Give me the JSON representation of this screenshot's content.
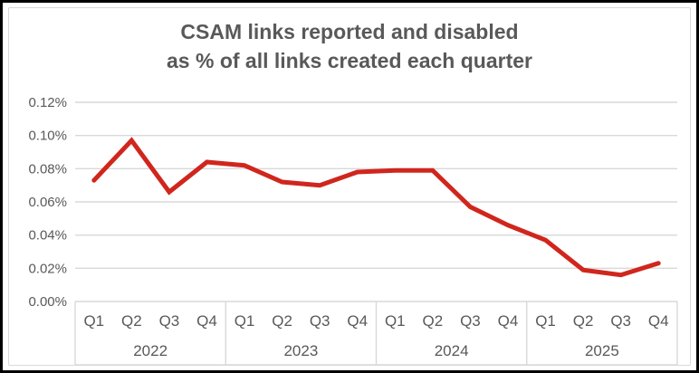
{
  "title": {
    "line1": "CSAM links reported and disabled",
    "line2": "as % of all links created each quarter"
  },
  "chart_data": {
    "type": "line",
    "title": "CSAM links reported and disabled as % of all links created each quarter",
    "legend": false,
    "grid": true,
    "x_axis": {
      "years": [
        "2022",
        "2023",
        "2024",
        "2025"
      ],
      "quarters_per_year": [
        "Q1",
        "Q2",
        "Q3",
        "Q4"
      ],
      "categories": [
        "2022 Q1",
        "2022 Q2",
        "2022 Q3",
        "2022 Q4",
        "2023 Q1",
        "2023 Q2",
        "2023 Q3",
        "2023 Q4",
        "2024 Q1",
        "2024 Q2",
        "2024 Q3",
        "2024 Q4",
        "2025 Q1",
        "2025 Q2",
        "2025 Q3",
        "2025 Q4"
      ]
    },
    "y_axis": {
      "tick_labels": [
        "0.12%",
        "0.10%",
        "0.08%",
        "0.06%",
        "0.04%",
        "0.02%",
        "0.00%"
      ],
      "min_percent": 0.0,
      "max_percent": 0.12
    },
    "series": [
      {
        "name": "CSAM links reported and disabled as % of all links created",
        "values_percent": [
          0.073,
          0.097,
          0.066,
          0.084,
          0.082,
          0.072,
          0.07,
          0.078,
          0.079,
          0.079,
          0.057,
          0.046,
          0.037,
          0.019,
          0.016,
          0.023
        ]
      }
    ],
    "line_color": "#d0261d"
  },
  "colors": {
    "background": "#ffffff",
    "outer_border": "#000000",
    "chart_border": "#d9d9d9",
    "gridline": "#d9d9d9",
    "axis_box": "#d9d9d9",
    "text": "#595959",
    "line": "#d0261d"
  }
}
